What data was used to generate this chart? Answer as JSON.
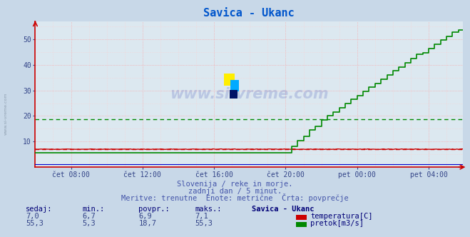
{
  "title": "Savica - Ukanc",
  "title_color": "#0055cc",
  "bg_color": "#c8d8e8",
  "plot_bg_color": "#dce8f0",
  "grid_color_major": "#ff9999",
  "grid_color_minor": "#ffcccc",
  "ylim": [
    0,
    57
  ],
  "xlim": [
    0,
    287
  ],
  "xtick_labels": [
    "čet 08:00",
    "čet 12:00",
    "čet 16:00",
    "čet 20:00",
    "pet 00:00",
    "pet 04:00"
  ],
  "xtick_positions": [
    24,
    72,
    120,
    168,
    216,
    264
  ],
  "ytick_labels": [
    "10",
    "20",
    "30",
    "40",
    "50"
  ],
  "ytick_positions": [
    10,
    20,
    30,
    40,
    50
  ],
  "temp_color": "#cc0000",
  "flow_color": "#008800",
  "height_color": "#0000cc",
  "avg_temp": 6.9,
  "avg_flow": 18.7,
  "subtitle1": "Slovenija / reke in morje.",
  "subtitle2": "zadnji dan / 5 minut.",
  "subtitle3": "Meritve: trenutne  Enote: metrične  Črta: povprečje",
  "subtitle_color": "#4455aa",
  "table_header": [
    "sedaj:",
    "min.:",
    "povpr.:",
    "maks.:",
    "Savica - Ukanc"
  ],
  "table_row1": [
    "7,0",
    "6,7",
    "6,9",
    "7,1"
  ],
  "table_row2": [
    "55,3",
    "5,3",
    "18,7",
    "55,3"
  ],
  "legend_temp": "temperatura[C]",
  "legend_flow": "pretok[m3/s]",
  "table_color": "#000077"
}
